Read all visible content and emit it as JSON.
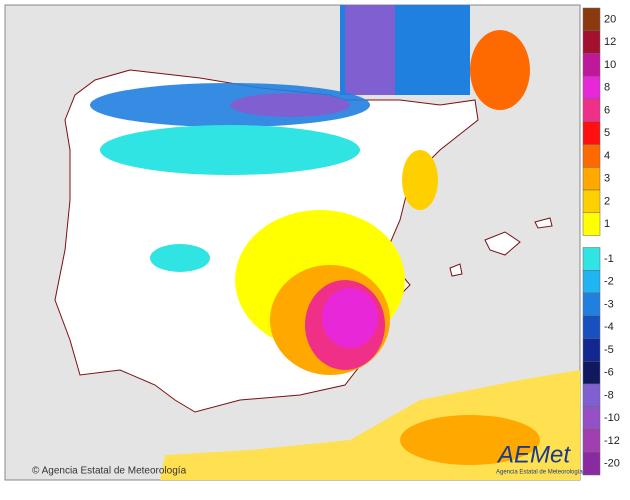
{
  "legend": {
    "items": [
      {
        "label": "20",
        "color": "#8b3a10"
      },
      {
        "label": "12",
        "color": "#a31030"
      },
      {
        "label": "10",
        "color": "#c0189a"
      },
      {
        "label": "8",
        "color": "#e828d8"
      },
      {
        "label": "6",
        "color": "#f03088"
      },
      {
        "label": "5",
        "color": "#ff1010"
      },
      {
        "label": "4",
        "color": "#ff6a00"
      },
      {
        "label": "3",
        "color": "#ffa800"
      },
      {
        "label": "2",
        "color": "#ffd000"
      },
      {
        "label": "1",
        "color": "#ffff00"
      },
      {
        "label": "-1",
        "color": "#30e4e4"
      },
      {
        "label": "-2",
        "color": "#20b4f0"
      },
      {
        "label": "-3",
        "color": "#2080e0"
      },
      {
        "label": "-4",
        "color": "#1850c0"
      },
      {
        "label": "-5",
        "color": "#102890"
      },
      {
        "label": "-6",
        "color": "#101860"
      },
      {
        "label": "-8",
        "color": "#8060d0"
      },
      {
        "label": "-10",
        "color": "#9450c4"
      },
      {
        "label": "-12",
        "color": "#a040b0"
      },
      {
        "label": "-20",
        "color": "#8a2aa0"
      }
    ]
  },
  "copyright": "© Agencia Estatal de Meteorología",
  "logo": {
    "name": "AEMet",
    "subtitle": "Agencia Estatal de Meteorología"
  }
}
